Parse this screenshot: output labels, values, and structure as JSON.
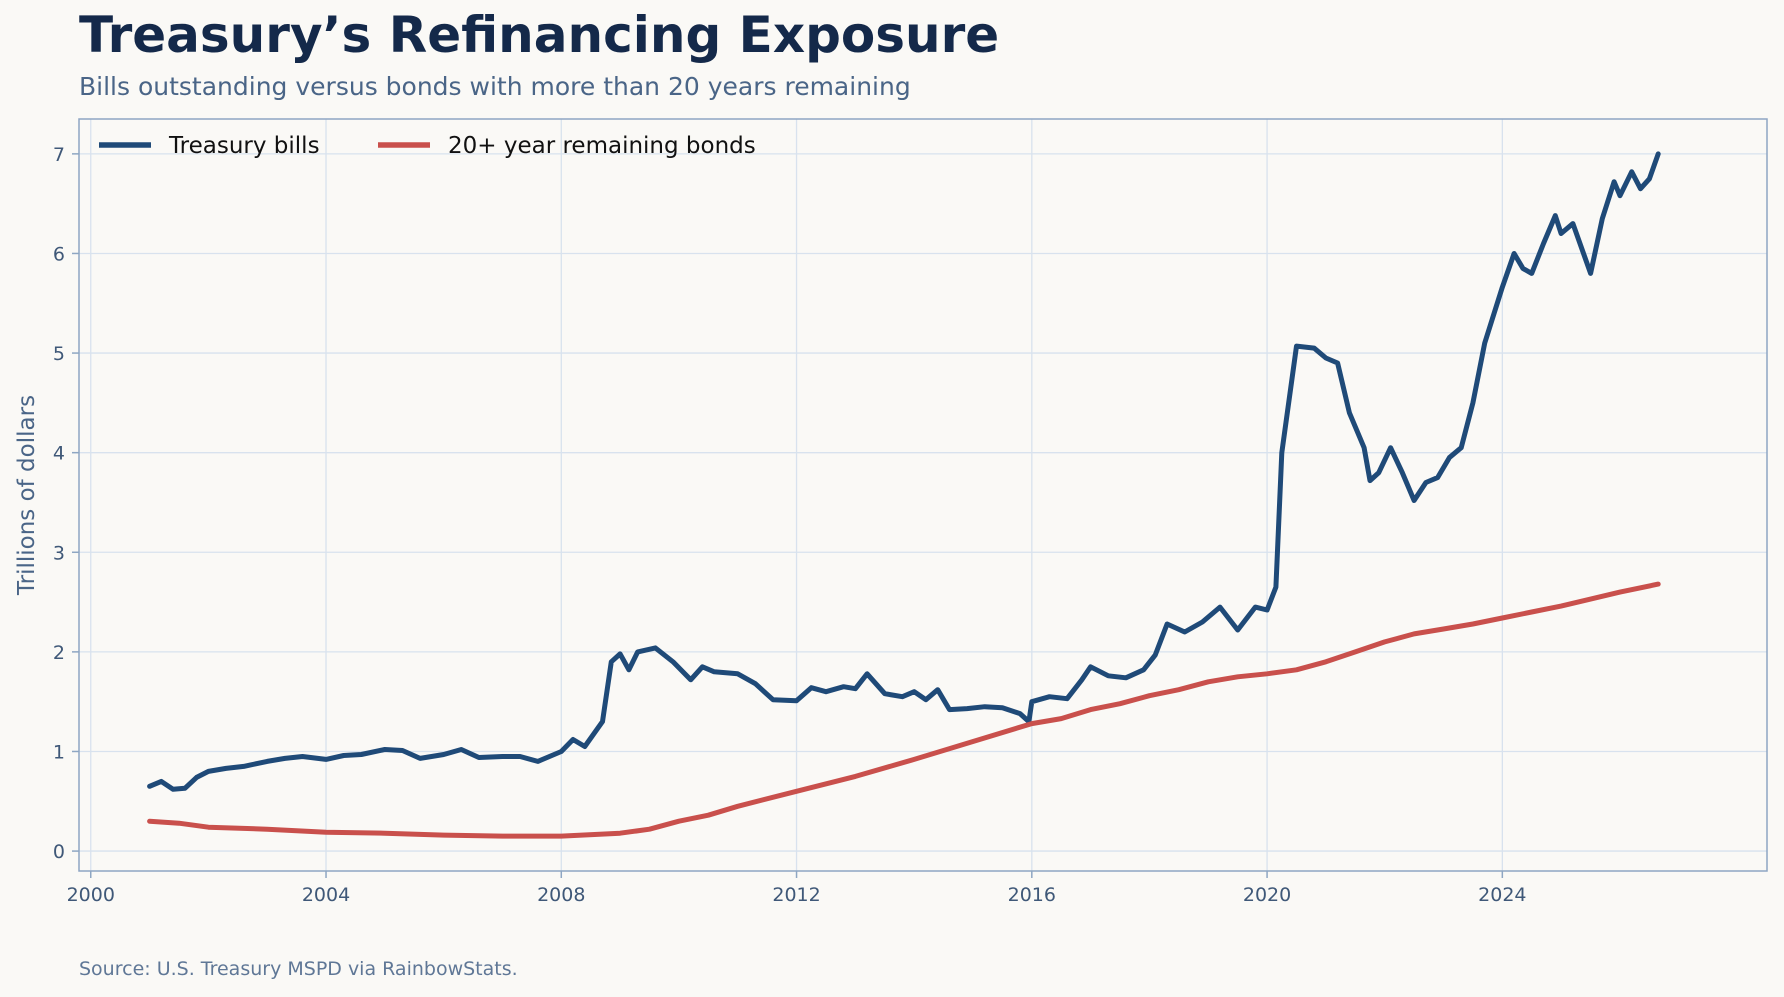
{
  "header": {
    "title": "Treasury’s Refinancing Exposure",
    "subtitle": "Bills outstanding versus bonds with more than 20 years remaining"
  },
  "footer": {
    "source": "Source: U.S. Treasury MSPD via RainbowStats."
  },
  "colors": {
    "background": "#faf9f6",
    "grid": "#d8e2ee",
    "axis": "#8ea6c3",
    "tick_text": "#3f5878",
    "bills": "#1f4a78",
    "bonds": "#c9504c"
  },
  "chart_data": {
    "type": "line",
    "title": "Treasury’s Refinancing Exposure",
    "subtitle": "Bills outstanding versus bonds with more than 20 years remaining",
    "xlabel": "",
    "ylabel": "Trillions of dollars",
    "x_unit": "year",
    "xlim": [
      1999.8,
      2028.5
    ],
    "ylim": [
      -0.2,
      7.35
    ],
    "xticks": [
      2000,
      2004,
      2008,
      2012,
      2016,
      2020,
      2024
    ],
    "yticks": [
      0,
      1,
      2,
      3,
      4,
      5,
      6,
      7
    ],
    "grid": true,
    "legend": {
      "position": "top-left",
      "columns": 2
    },
    "series": [
      {
        "name": "Treasury bills",
        "color": "#1f4a78",
        "points": [
          [
            2001.0,
            0.65
          ],
          [
            2001.2,
            0.7
          ],
          [
            2001.4,
            0.62
          ],
          [
            2001.6,
            0.63
          ],
          [
            2001.8,
            0.74
          ],
          [
            2002.0,
            0.8
          ],
          [
            2002.3,
            0.83
          ],
          [
            2002.6,
            0.85
          ],
          [
            2003.0,
            0.9
          ],
          [
            2003.3,
            0.93
          ],
          [
            2003.6,
            0.95
          ],
          [
            2004.0,
            0.92
          ],
          [
            2004.3,
            0.96
          ],
          [
            2004.6,
            0.97
          ],
          [
            2005.0,
            1.02
          ],
          [
            2005.3,
            1.01
          ],
          [
            2005.6,
            0.93
          ],
          [
            2006.0,
            0.97
          ],
          [
            2006.3,
            1.02
          ],
          [
            2006.6,
            0.94
          ],
          [
            2007.0,
            0.95
          ],
          [
            2007.3,
            0.95
          ],
          [
            2007.6,
            0.9
          ],
          [
            2008.0,
            1.0
          ],
          [
            2008.2,
            1.12
          ],
          [
            2008.4,
            1.05
          ],
          [
            2008.7,
            1.3
          ],
          [
            2008.85,
            1.9
          ],
          [
            2009.0,
            1.98
          ],
          [
            2009.15,
            1.82
          ],
          [
            2009.3,
            2.0
          ],
          [
            2009.6,
            2.04
          ],
          [
            2009.9,
            1.9
          ],
          [
            2010.2,
            1.72
          ],
          [
            2010.4,
            1.85
          ],
          [
            2010.6,
            1.8
          ],
          [
            2011.0,
            1.78
          ],
          [
            2011.3,
            1.68
          ],
          [
            2011.6,
            1.52
          ],
          [
            2012.0,
            1.51
          ],
          [
            2012.25,
            1.64
          ],
          [
            2012.5,
            1.6
          ],
          [
            2012.8,
            1.65
          ],
          [
            2013.0,
            1.63
          ],
          [
            2013.2,
            1.78
          ],
          [
            2013.5,
            1.58
          ],
          [
            2013.8,
            1.55
          ],
          [
            2014.0,
            1.6
          ],
          [
            2014.2,
            1.52
          ],
          [
            2014.4,
            1.62
          ],
          [
            2014.6,
            1.42
          ],
          [
            2014.9,
            1.43
          ],
          [
            2015.2,
            1.45
          ],
          [
            2015.5,
            1.44
          ],
          [
            2015.8,
            1.38
          ],
          [
            2015.95,
            1.3
          ],
          [
            2016.0,
            1.5
          ],
          [
            2016.3,
            1.55
          ],
          [
            2016.6,
            1.53
          ],
          [
            2016.85,
            1.72
          ],
          [
            2017.0,
            1.85
          ],
          [
            2017.3,
            1.76
          ],
          [
            2017.6,
            1.74
          ],
          [
            2017.9,
            1.82
          ],
          [
            2018.1,
            1.97
          ],
          [
            2018.3,
            2.28
          ],
          [
            2018.6,
            2.2
          ],
          [
            2018.9,
            2.3
          ],
          [
            2019.2,
            2.45
          ],
          [
            2019.5,
            2.22
          ],
          [
            2019.8,
            2.45
          ],
          [
            2020.0,
            2.42
          ],
          [
            2020.15,
            2.65
          ],
          [
            2020.25,
            4.0
          ],
          [
            2020.5,
            5.07
          ],
          [
            2020.8,
            5.05
          ],
          [
            2021.0,
            4.95
          ],
          [
            2021.2,
            4.9
          ],
          [
            2021.4,
            4.4
          ],
          [
            2021.65,
            4.05
          ],
          [
            2021.75,
            3.72
          ],
          [
            2021.9,
            3.8
          ],
          [
            2022.1,
            4.05
          ],
          [
            2022.3,
            3.8
          ],
          [
            2022.5,
            3.52
          ],
          [
            2022.7,
            3.7
          ],
          [
            2022.9,
            3.75
          ],
          [
            2023.1,
            3.95
          ],
          [
            2023.3,
            4.05
          ],
          [
            2023.5,
            4.5
          ],
          [
            2023.7,
            5.1
          ],
          [
            2024.0,
            5.66
          ],
          [
            2024.2,
            6.0
          ],
          [
            2024.35,
            5.85
          ],
          [
            2024.5,
            5.8
          ],
          [
            2024.7,
            6.1
          ],
          [
            2024.9,
            6.38
          ],
          [
            2025.0,
            6.2
          ],
          [
            2025.2,
            6.3
          ],
          [
            2025.5,
            5.8
          ],
          [
            2025.7,
            6.35
          ],
          [
            2025.9,
            6.72
          ],
          [
            2026.0,
            6.58
          ],
          [
            2026.2,
            6.82
          ],
          [
            2026.35,
            6.65
          ],
          [
            2026.5,
            6.75
          ],
          [
            2026.65,
            7.0
          ]
        ]
      },
      {
        "name": "20+ year remaining bonds",
        "color": "#c9504c",
        "points": [
          [
            2001.0,
            0.3
          ],
          [
            2001.5,
            0.28
          ],
          [
            2002.0,
            0.24
          ],
          [
            2003.0,
            0.22
          ],
          [
            2004.0,
            0.19
          ],
          [
            2005.0,
            0.18
          ],
          [
            2006.0,
            0.16
          ],
          [
            2007.0,
            0.15
          ],
          [
            2008.0,
            0.15
          ],
          [
            2009.0,
            0.18
          ],
          [
            2009.5,
            0.22
          ],
          [
            2010.0,
            0.3
          ],
          [
            2010.5,
            0.36
          ],
          [
            2011.0,
            0.45
          ],
          [
            2012.0,
            0.6
          ],
          [
            2013.0,
            0.75
          ],
          [
            2014.0,
            0.92
          ],
          [
            2015.0,
            1.1
          ],
          [
            2016.0,
            1.28
          ],
          [
            2016.5,
            1.33
          ],
          [
            2017.0,
            1.42
          ],
          [
            2017.5,
            1.48
          ],
          [
            2018.0,
            1.56
          ],
          [
            2018.5,
            1.62
          ],
          [
            2019.0,
            1.7
          ],
          [
            2019.5,
            1.75
          ],
          [
            2020.0,
            1.78
          ],
          [
            2020.5,
            1.82
          ],
          [
            2021.0,
            1.9
          ],
          [
            2021.5,
            2.0
          ],
          [
            2022.0,
            2.1
          ],
          [
            2022.5,
            2.18
          ],
          [
            2023.0,
            2.23
          ],
          [
            2023.5,
            2.28
          ],
          [
            2024.0,
            2.34
          ],
          [
            2024.5,
            2.4
          ],
          [
            2025.0,
            2.46
          ],
          [
            2025.5,
            2.53
          ],
          [
            2026.0,
            2.6
          ],
          [
            2026.65,
            2.68
          ]
        ]
      }
    ]
  }
}
